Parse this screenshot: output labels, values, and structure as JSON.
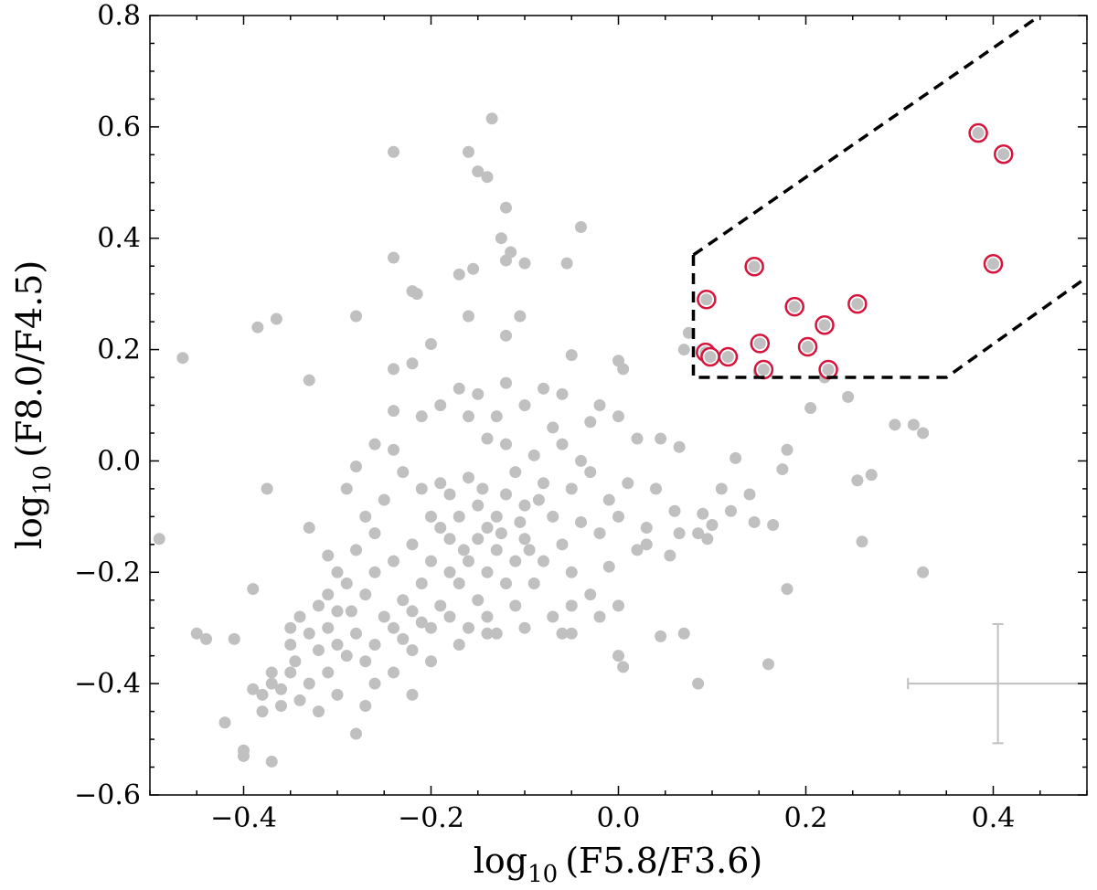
{
  "chart_data": {
    "type": "scatter",
    "title": "",
    "xlabel": {
      "log": "log",
      "base": "10",
      "arg": "(F5.8/F3.6)"
    },
    "ylabel": {
      "log": "log",
      "base": "10",
      "arg": "(F8.0/F4.5)"
    },
    "xlim": [
      -0.5,
      0.5
    ],
    "ylim": [
      -0.6,
      0.8
    ],
    "xticks": [
      -0.4,
      -0.2,
      0.0,
      0.2,
      0.4
    ],
    "yticks": [
      -0.6,
      -0.4,
      -0.2,
      0.0,
      0.2,
      0.4,
      0.6,
      0.8
    ],
    "xtick_labels": [
      "−0.4",
      "−0.2",
      "0.0",
      "0.2",
      "0.4"
    ],
    "ytick_labels": [
      "−0.6",
      "−0.4",
      "−0.2",
      "0.0",
      "0.2",
      "0.4",
      "0.6",
      "0.8"
    ],
    "grid": false,
    "colors": {
      "points": "#c0c0c0",
      "selected_ring": "#d6143c",
      "selection_box": "#000000",
      "error_bar": "#c0c0c0"
    },
    "selection_region": [
      [
        0.08,
        0.8
      ],
      [
        0.08,
        0.37
      ],
      [
        0.08,
        0.15
      ],
      [
        0.35,
        0.15
      ],
      [
        0.5,
        0.33
      ]
    ],
    "selection_upper_line": [
      [
        0.08,
        0.37
      ],
      [
        0.45,
        0.8
      ]
    ],
    "selected_points": [
      [
        0.384,
        0.589
      ],
      [
        0.411,
        0.551
      ],
      [
        0.4,
        0.354
      ],
      [
        0.145,
        0.349
      ],
      [
        0.094,
        0.29
      ],
      [
        0.188,
        0.277
      ],
      [
        0.255,
        0.282
      ],
      [
        0.22,
        0.244
      ],
      [
        0.202,
        0.205
      ],
      [
        0.151,
        0.211
      ],
      [
        0.093,
        0.195
      ],
      [
        0.098,
        0.187
      ],
      [
        0.117,
        0.187
      ],
      [
        0.155,
        0.164
      ],
      [
        0.224,
        0.164
      ]
    ],
    "error_bar": {
      "x": 0.405,
      "y": -0.4,
      "xerr": 0.096,
      "yerr": 0.107
    },
    "points": [
      [
        -0.49,
        -0.14
      ],
      [
        -0.465,
        0.185
      ],
      [
        -0.45,
        -0.31
      ],
      [
        -0.44,
        -0.32
      ],
      [
        -0.42,
        -0.47
      ],
      [
        -0.41,
        -0.32
      ],
      [
        -0.4,
        -0.52
      ],
      [
        -0.4,
        -0.53
      ],
      [
        -0.39,
        -0.23
      ],
      [
        -0.385,
        0.24
      ],
      [
        -0.375,
        -0.05
      ],
      [
        -0.37,
        -0.54
      ],
      [
        -0.365,
        0.255
      ],
      [
        -0.33,
        0.145
      ],
      [
        -0.33,
        -0.12
      ],
      [
        -0.28,
        0.26
      ],
      [
        -0.28,
        -0.49
      ],
      [
        -0.24,
        0.365
      ],
      [
        -0.22,
        0.305
      ],
      [
        -0.215,
        0.3
      ],
      [
        -0.24,
        0.555
      ],
      [
        -0.16,
        0.555
      ],
      [
        -0.15,
        0.52
      ],
      [
        -0.14,
        0.51
      ],
      [
        -0.135,
        0.615
      ],
      [
        -0.12,
        0.455
      ],
      [
        -0.125,
        0.4
      ],
      [
        -0.115,
        0.375
      ],
      [
        -0.17,
        0.335
      ],
      [
        -0.155,
        0.345
      ],
      [
        -0.12,
        0.36
      ],
      [
        -0.1,
        0.355
      ],
      [
        -0.105,
        0.26
      ],
      [
        -0.04,
        0.42
      ],
      [
        -0.055,
        0.355
      ],
      [
        -0.12,
        0.225
      ],
      [
        -0.16,
        0.26
      ],
      [
        -0.24,
        0.165
      ],
      [
        -0.22,
        0.175
      ],
      [
        -0.2,
        0.21
      ],
      [
        -0.05,
        0.19
      ],
      [
        0.0,
        0.18
      ],
      [
        0.005,
        0.165
      ],
      [
        0.07,
        0.2
      ],
      [
        0.075,
        0.23
      ],
      [
        0.245,
        0.115
      ],
      [
        0.295,
        0.065
      ],
      [
        0.315,
        0.065
      ],
      [
        0.325,
        0.05
      ],
      [
        0.18,
        0.02
      ],
      [
        0.255,
        -0.035
      ],
      [
        0.27,
        -0.025
      ],
      [
        0.175,
        -0.015
      ],
      [
        0.125,
        0.005
      ],
      [
        0.14,
        -0.06
      ],
      [
        0.145,
        -0.11
      ],
      [
        0.165,
        -0.115
      ],
      [
        0.12,
        -0.09
      ],
      [
        0.11,
        -0.05
      ],
      [
        0.26,
        -0.145
      ],
      [
        0.325,
        -0.2
      ],
      [
        0.18,
        -0.23
      ],
      [
        0.16,
        -0.365
      ],
      [
        0.085,
        -0.4
      ],
      [
        0.07,
        -0.31
      ],
      [
        0.045,
        -0.315
      ],
      [
        0.0,
        -0.35
      ],
      [
        0.005,
        -0.37
      ],
      [
        0.1,
        -0.115
      ],
      [
        0.085,
        -0.13
      ],
      [
        0.09,
        -0.095
      ],
      [
        0.095,
        -0.14
      ],
      [
        0.06,
        -0.09
      ],
      [
        0.065,
        -0.13
      ],
      [
        0.055,
        -0.17
      ],
      [
        0.065,
        0.025
      ],
      [
        0.045,
        0.04
      ],
      [
        0.03,
        -0.15
      ],
      [
        0.04,
        -0.05
      ],
      [
        0.0,
        -0.26
      ],
      [
        -0.02,
        -0.28
      ],
      [
        -0.05,
        -0.31
      ],
      [
        -0.06,
        -0.31
      ],
      [
        -0.1,
        -0.3
      ],
      [
        -0.13,
        -0.31
      ],
      [
        -0.14,
        -0.31
      ],
      [
        0.22,
        0.15
      ],
      [
        0.205,
        0.095
      ],
      [
        0.15,
        0.16
      ],
      [
        -0.38,
        -0.42
      ],
      [
        -0.37,
        -0.4
      ],
      [
        -0.36,
        -0.44
      ],
      [
        -0.35,
        -0.38
      ],
      [
        -0.38,
        -0.45
      ],
      [
        -0.36,
        -0.41
      ],
      [
        -0.34,
        -0.43
      ],
      [
        -0.33,
        -0.4
      ],
      [
        -0.35,
        -0.3
      ],
      [
        -0.34,
        -0.28
      ],
      [
        -0.32,
        -0.26
      ],
      [
        -0.31,
        -0.3
      ],
      [
        -0.3,
        -0.27
      ],
      [
        -0.3,
        -0.33
      ],
      [
        -0.29,
        -0.35
      ],
      [
        -0.31,
        -0.38
      ],
      [
        -0.28,
        -0.31
      ],
      [
        -0.27,
        -0.24
      ],
      [
        -0.26,
        -0.2
      ],
      [
        -0.29,
        -0.22
      ],
      [
        -0.32,
        -0.34
      ],
      [
        -0.33,
        -0.31
      ],
      [
        -0.27,
        -0.36
      ],
      [
        -0.26,
        -0.33
      ],
      [
        -0.25,
        -0.28
      ],
      [
        -0.24,
        -0.3
      ],
      [
        -0.23,
        -0.25
      ],
      [
        -0.22,
        -0.27
      ],
      [
        -0.21,
        -0.22
      ],
      [
        -0.24,
        -0.18
      ],
      [
        -0.26,
        -0.13
      ],
      [
        -0.27,
        -0.1
      ],
      [
        -0.25,
        -0.07
      ],
      [
        -0.24,
        0.02
      ],
      [
        -0.26,
        0.03
      ],
      [
        -0.23,
        -0.02
      ],
      [
        -0.21,
        -0.05
      ],
      [
        -0.2,
        -0.1
      ],
      [
        -0.19,
        -0.12
      ],
      [
        -0.22,
        -0.15
      ],
      [
        -0.2,
        -0.18
      ],
      [
        -0.18,
        -0.2
      ],
      [
        -0.19,
        -0.26
      ],
      [
        -0.22,
        -0.34
      ],
      [
        -0.24,
        -0.38
      ],
      [
        -0.27,
        -0.44
      ],
      [
        -0.22,
        -0.42
      ],
      [
        -0.2,
        -0.3
      ],
      [
        -0.18,
        -0.28
      ],
      [
        -0.17,
        -0.22
      ],
      [
        -0.16,
        -0.18
      ],
      [
        -0.15,
        -0.14
      ],
      [
        -0.17,
        -0.1
      ],
      [
        -0.18,
        -0.06
      ],
      [
        -0.16,
        -0.03
      ],
      [
        -0.15,
        -0.08
      ],
      [
        -0.14,
        -0.12
      ],
      [
        -0.13,
        -0.1
      ],
      [
        -0.12,
        -0.06
      ],
      [
        -0.13,
        -0.16
      ],
      [
        -0.14,
        -0.2
      ],
      [
        -0.15,
        -0.25
      ],
      [
        -0.16,
        -0.3
      ],
      [
        -0.17,
        -0.33
      ],
      [
        -0.12,
        -0.22
      ],
      [
        -0.11,
        -0.18
      ],
      [
        -0.1,
        -0.14
      ],
      [
        -0.1,
        -0.08
      ],
      [
        -0.11,
        -0.02
      ],
      [
        -0.12,
        0.03
      ],
      [
        -0.13,
        0.08
      ],
      [
        -0.14,
        0.04
      ],
      [
        -0.09,
        0.01
      ],
      [
        -0.08,
        -0.04
      ],
      [
        -0.07,
        -0.1
      ],
      [
        -0.08,
        -0.18
      ],
      [
        -0.09,
        -0.22
      ],
      [
        -0.06,
        -0.15
      ],
      [
        -0.05,
        -0.05
      ],
      [
        -0.04,
        0.0
      ],
      [
        -0.06,
        0.03
      ],
      [
        -0.03,
        -0.02
      ],
      [
        -0.04,
        -0.11
      ],
      [
        -0.05,
        -0.2
      ],
      [
        -0.03,
        -0.24
      ],
      [
        -0.02,
        -0.13
      ],
      [
        -0.01,
        -0.07
      ],
      [
        0.0,
        -0.1
      ],
      [
        0.01,
        -0.04
      ],
      [
        0.02,
        -0.16
      ],
      [
        0.02,
        0.04
      ],
      [
        0.0,
        0.08
      ],
      [
        -0.02,
        0.1
      ],
      [
        -0.07,
        0.06
      ],
      [
        -0.08,
        0.13
      ],
      [
        -0.1,
        0.1
      ],
      [
        -0.16,
        0.08
      ],
      [
        -0.17,
        0.13
      ],
      [
        -0.19,
        0.1
      ],
      [
        -0.21,
        0.08
      ],
      [
        -0.24,
        0.09
      ],
      [
        -0.28,
        -0.01
      ],
      [
        -0.29,
        -0.05
      ],
      [
        -0.31,
        -0.17
      ],
      [
        -0.3,
        -0.2
      ],
      [
        -0.28,
        -0.16
      ],
      [
        -0.35,
        -0.33
      ],
      [
        -0.39,
        -0.41
      ],
      [
        -0.32,
        -0.45
      ],
      [
        -0.3,
        -0.42
      ],
      [
        -0.26,
        -0.4
      ],
      [
        -0.2,
        -0.36
      ],
      [
        -0.14,
        -0.28
      ],
      [
        -0.11,
        -0.26
      ],
      [
        -0.07,
        -0.28
      ],
      [
        -0.05,
        -0.26
      ],
      [
        -0.01,
        -0.19
      ],
      [
        0.03,
        -0.12
      ],
      [
        -0.12,
        0.14
      ],
      [
        -0.06,
        0.12
      ],
      [
        -0.03,
        0.07
      ],
      [
        -0.15,
        0.12
      ],
      [
        -0.18,
        -0.14
      ],
      [
        -0.19,
        -0.04
      ],
      [
        -0.165,
        -0.16
      ],
      [
        -0.145,
        -0.05
      ],
      [
        -0.125,
        -0.13
      ],
      [
        -0.105,
        -0.11
      ],
      [
        -0.085,
        -0.07
      ],
      [
        -0.095,
        -0.16
      ],
      [
        -0.23,
        -0.32
      ],
      [
        -0.21,
        -0.29
      ],
      [
        -0.285,
        -0.27
      ],
      [
        -0.31,
        -0.24
      ],
      [
        -0.345,
        -0.36
      ],
      [
        -0.37,
        -0.38
      ]
    ]
  }
}
